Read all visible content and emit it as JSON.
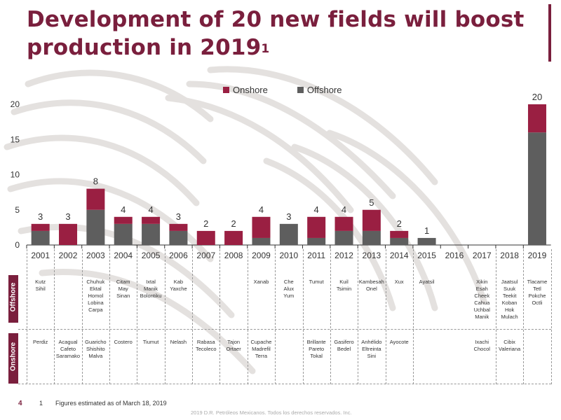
{
  "title": {
    "line1": "Development of 20 new fields will boost",
    "line2": "production in 2019",
    "footnote_mark": "1"
  },
  "legend": {
    "onshore": "Onshore",
    "offshore": "Offshore"
  },
  "colors": {
    "onshore": "#9a1f42",
    "offshore": "#5e5e5e",
    "accent": "#7a1f3d"
  },
  "chart_data": {
    "type": "bar",
    "stacked": true,
    "categories": [
      "2001",
      "2002",
      "2003",
      "2004",
      "2005",
      "2006",
      "2007",
      "2008",
      "2009",
      "2010",
      "2011",
      "2012",
      "2013",
      "2014",
      "2015",
      "2016",
      "2017",
      "2018",
      "2019"
    ],
    "series": [
      {
        "name": "Offshore",
        "values": [
          2,
          0,
          5,
          3,
          3,
          2,
          0,
          0,
          1,
          3,
          1,
          2,
          2,
          1,
          1,
          0,
          0,
          0,
          16
        ]
      },
      {
        "name": "Onshore",
        "values": [
          1,
          3,
          3,
          1,
          1,
          1,
          2,
          2,
          3,
          0,
          3,
          2,
          3,
          1,
          0,
          0,
          0,
          0,
          4
        ]
      }
    ],
    "totals": [
      3,
      3,
      8,
      4,
      4,
      3,
      2,
      2,
      4,
      3,
      4,
      4,
      5,
      2,
      1,
      null,
      null,
      null,
      20
    ],
    "yticks": [
      0,
      5,
      10,
      15,
      20
    ],
    "ylim": [
      0,
      21
    ],
    "legend_position": "top"
  },
  "offshore_label": "Offshore",
  "onshore_label": "Onshore",
  "offshore_fields": [
    "Kutz\nSihil",
    "",
    "Chuhuk\nEktal\nHomol\nLobina\nCarpa",
    "Citam\nMay\nSinan",
    "Ixtal\nManik\nBolontiku",
    "Kab\nYaxche",
    "",
    "",
    "Xanab",
    "Che\nAlux\nYum",
    "Tumut",
    "Kuil\nTsimin",
    "Kambesah\nOnel",
    "Xux",
    "Ayatsil",
    "",
    "Xikin\nEsah\nCheek\nCahua\nUchbal\nManik",
    "Jaatsul\nSuuk\nTeekit\nKoban\nHok\nMulach",
    "Tlacame\nTetl\nPokche\nOctli"
  ],
  "onshore_fields": [
    "Perdiz",
    "Acagual\nCafeto\nSaramako",
    "Guaricho\nShishito\nMalva",
    "Costero",
    "Tiumut",
    "Nelash",
    "Rabasa\nTecoleco",
    "Tajon\nOrtaer",
    "Cupache\nMadrefil\nTerra",
    "",
    "Brillante\nPareto\nTokal",
    "Gasifero\nBedel",
    "Anhélido\nEltreinta\nSini",
    "Ayocote",
    "",
    "",
    "Ixachi\nChocol",
    "Cibix\nValeriana",
    ""
  ],
  "footnote": {
    "page": "4",
    "number": "1",
    "text": "Figures estimated as of March 18, 2019"
  },
  "copyright": "2019 D.R. Petróleos Mexicanos. Todos los derechos reservados. Inc."
}
